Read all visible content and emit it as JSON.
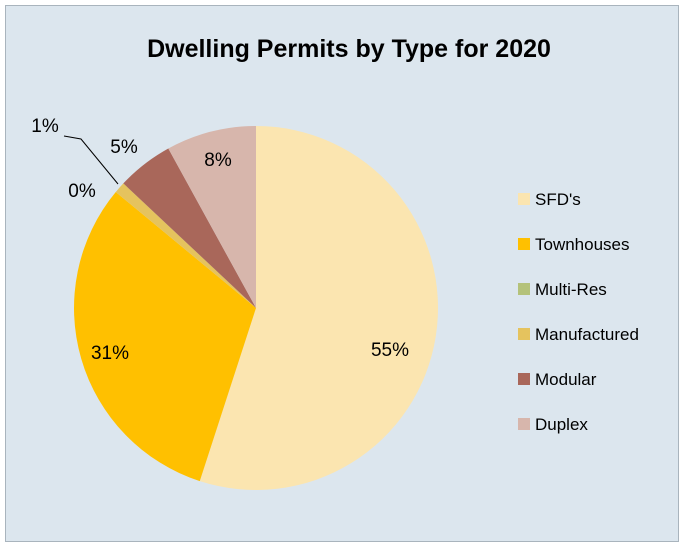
{
  "chart_data": {
    "type": "pie",
    "title": "Dwelling Permits by Type for 2020",
    "legend_position": "right",
    "slices": [
      {
        "name": "SFD's",
        "value": 55,
        "label": "55%",
        "color": "#fbe5b0"
      },
      {
        "name": "Townhouses",
        "value": 31,
        "label": "31%",
        "color": "#ffc000"
      },
      {
        "name": "Multi-Res",
        "value": 0,
        "label": "0%",
        "color": "#b4c27a"
      },
      {
        "name": "Manufactured",
        "value": 1,
        "label": "1%",
        "color": "#e5c35e"
      },
      {
        "name": "Modular",
        "value": 5,
        "label": "5%",
        "color": "#a9675a"
      },
      {
        "name": "Duplex",
        "value": 8,
        "label": "8%",
        "color": "#d7b6ac"
      }
    ]
  }
}
